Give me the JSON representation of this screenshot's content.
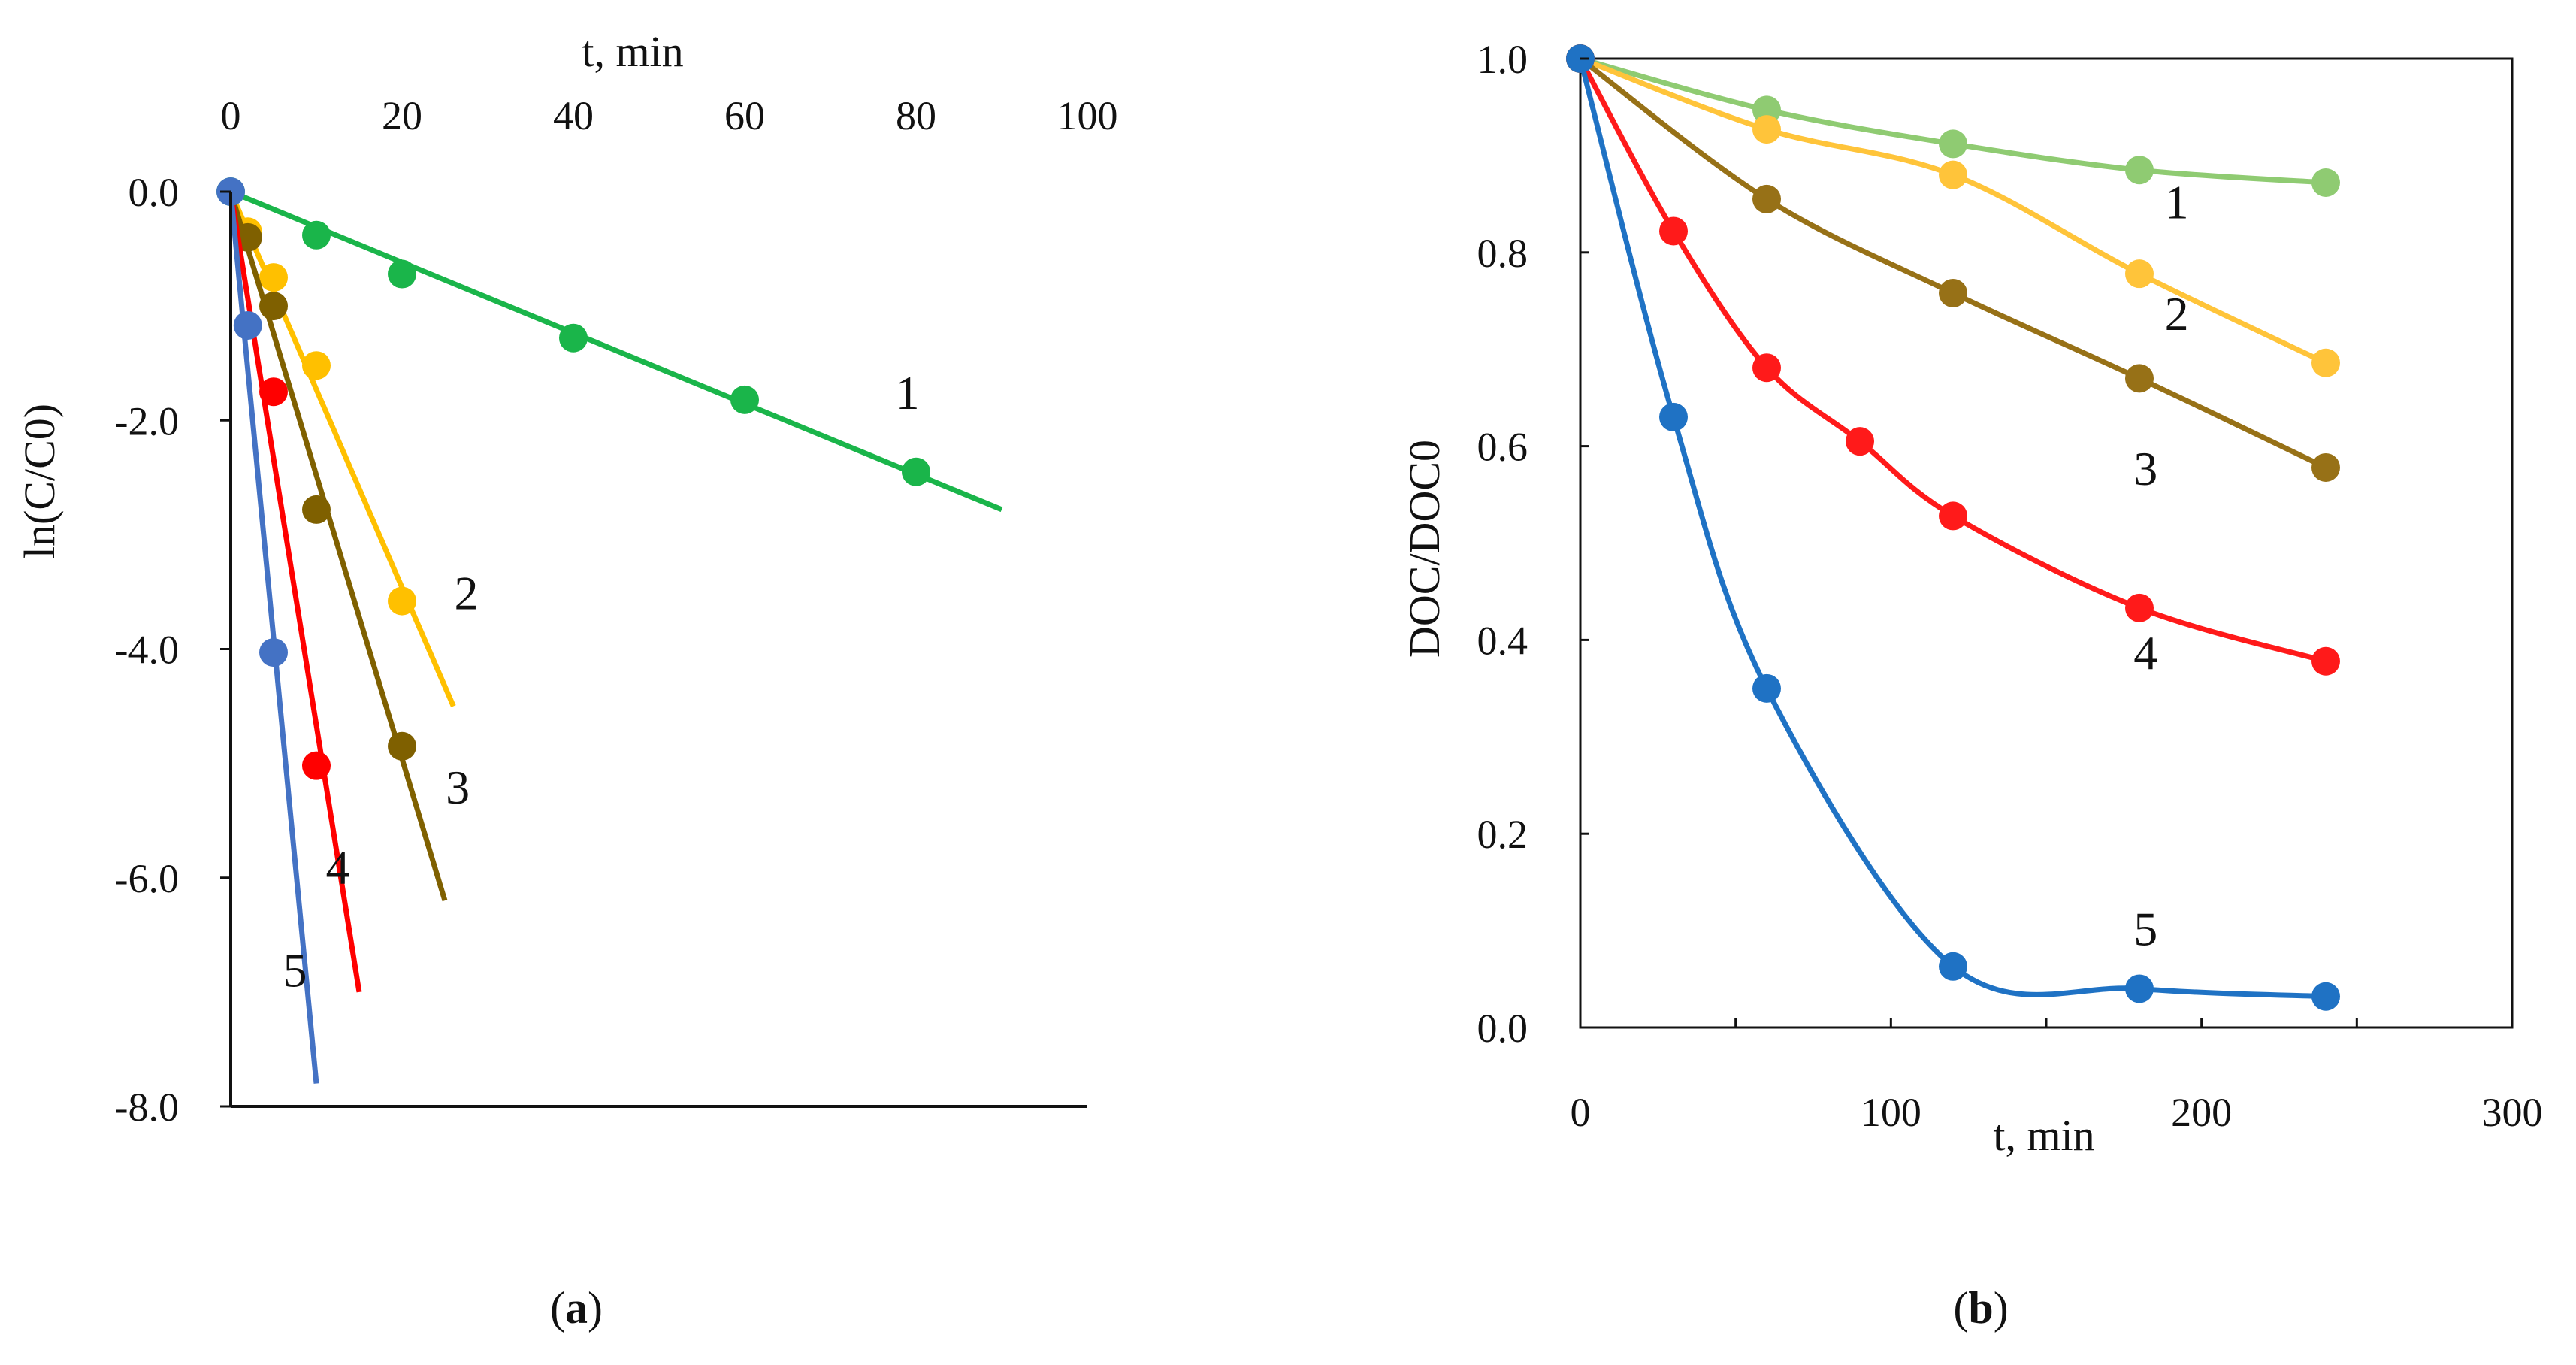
{
  "chart_data": [
    {
      "type": "scatter",
      "panel_label": "(a)",
      "panel_letter": "a",
      "xlabel": "t, min",
      "ylabel": "ln(C/C0)",
      "x_axis_position": "top",
      "xlim": [
        0,
        100
      ],
      "ylim": [
        -8,
        0
      ],
      "xticks": [
        0,
        20,
        40,
        60,
        80,
        100
      ],
      "yticks": [
        0,
        -2,
        -4,
        -6,
        -8
      ],
      "ytick_labels": [
        "0.0",
        "-2.0",
        "-4.0",
        "-6.0",
        "-8.0"
      ],
      "series": [
        {
          "name": "1",
          "color": "#1ab54a",
          "x": [
            0,
            10,
            20,
            40,
            60,
            80
          ],
          "y": [
            0,
            -0.38,
            -0.72,
            -1.28,
            -1.82,
            -2.45
          ],
          "fit": {
            "x": [
              0,
              90
            ],
            "y": [
              0,
              -2.78
            ]
          }
        },
        {
          "name": "2",
          "color": "#ffc000",
          "x": [
            2,
            5,
            10,
            20
          ],
          "y": [
            -0.35,
            -0.75,
            -1.52,
            -3.58
          ],
          "fit": {
            "x": [
              0,
              26
            ],
            "y": [
              0,
              -4.5
            ]
          }
        },
        {
          "name": "3",
          "color": "#7f6000",
          "x": [
            2,
            5,
            10,
            20
          ],
          "y": [
            -0.4,
            -1.0,
            -2.78,
            -4.85
          ],
          "fit": {
            "x": [
              0,
              25
            ],
            "y": [
              0,
              -6.2
            ]
          }
        },
        {
          "name": "4",
          "color": "#ff0000",
          "x": [
            5,
            10
          ],
          "y": [
            -1.75,
            -5.02
          ],
          "fit": {
            "x": [
              0,
              15
            ],
            "y": [
              0,
              -7.0
            ]
          }
        },
        {
          "name": "5",
          "color": "#4472c4",
          "x": [
            0,
            2,
            5
          ],
          "y": [
            0,
            -1.17,
            -4.03
          ],
          "fit": {
            "x": [
              0,
              10
            ],
            "y": [
              0,
              -7.8
            ]
          }
        }
      ],
      "labels": [
        {
          "text": "1",
          "x": 79,
          "y": -1.9
        },
        {
          "text": "2",
          "x": 27.5,
          "y": -3.65
        },
        {
          "text": "3",
          "x": 26.5,
          "y": -5.35
        },
        {
          "text": "4",
          "x": 12.5,
          "y": -6.05
        },
        {
          "text": "5",
          "x": 7.5,
          "y": -6.95
        }
      ]
    },
    {
      "type": "line",
      "panel_label": "(b)",
      "panel_letter": "b",
      "xlabel": "t, min",
      "ylabel": "DOC/DOC0",
      "xlim": [
        0,
        300
      ],
      "ylim": [
        0,
        1.0
      ],
      "xticks": [
        0,
        100,
        200,
        300
      ],
      "yticks": [
        0,
        0.2,
        0.4,
        0.6,
        0.8,
        1.0
      ],
      "ytick_labels": [
        "0.0",
        "0.2",
        "0.4",
        "0.6",
        "0.8",
        "1.0"
      ],
      "series": [
        {
          "name": "1",
          "color": "#8fcb72",
          "x": [
            0,
            60,
            120,
            180,
            240
          ],
          "y": [
            1.0,
            0.947,
            0.912,
            0.885,
            0.872
          ]
        },
        {
          "name": "2",
          "color": "#ffc43a",
          "x": [
            0,
            60,
            120,
            180,
            240
          ],
          "y": [
            1.0,
            0.927,
            0.88,
            0.778,
            0.686
          ]
        },
        {
          "name": "3",
          "color": "#977117",
          "x": [
            0,
            60,
            120,
            180,
            240
          ],
          "y": [
            1.0,
            0.855,
            0.758,
            0.67,
            0.578
          ]
        },
        {
          "name": "4",
          "color": "#ff1a1a",
          "x": [
            0,
            30,
            60,
            90,
            120,
            180,
            240
          ],
          "y": [
            1.0,
            0.822,
            0.681,
            0.605,
            0.528,
            0.433,
            0.378
          ]
        },
        {
          "name": "5",
          "color": "#1f72c4",
          "x": [
            0,
            30,
            60,
            120,
            180,
            240
          ],
          "y": [
            1.0,
            0.63,
            0.35,
            0.063,
            0.04,
            0.032
          ]
        }
      ],
      "labels": [
        {
          "text": "1",
          "x": 192,
          "y": 0.835
        },
        {
          "text": "2",
          "x": 192,
          "y": 0.72
        },
        {
          "text": "3",
          "x": 182,
          "y": 0.56
        },
        {
          "text": "4",
          "x": 182,
          "y": 0.37
        },
        {
          "text": "5",
          "x": 182,
          "y": 0.085
        }
      ]
    }
  ]
}
